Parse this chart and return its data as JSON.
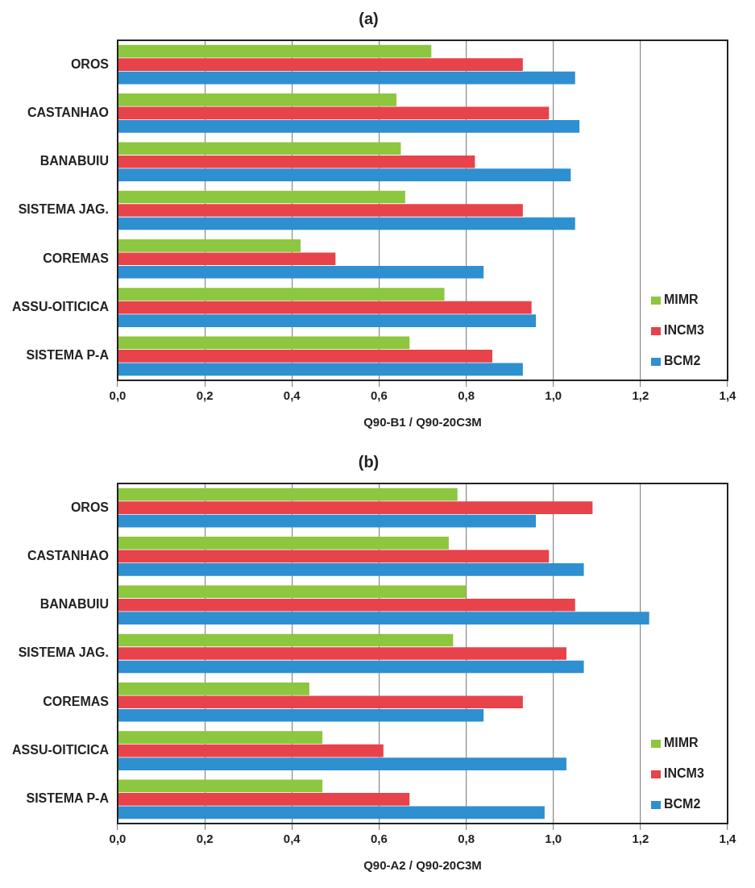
{
  "chart_data": [
    {
      "type": "bar",
      "title": "(a)",
      "orientation": "horizontal",
      "xlabel": "Q90-B1 / Q90-20C3M",
      "categories": [
        "OROS",
        "CASTANHAO",
        "BANABUIU",
        "SISTEMA JAG.",
        "COREMAS",
        "ASSU-OITICICA",
        "SISTEMA P-A"
      ],
      "series": [
        {
          "name": "MIMR",
          "color": "#8dc63f",
          "values": [
            0.72,
            0.64,
            0.65,
            0.66,
            0.42,
            0.75,
            0.67
          ]
        },
        {
          "name": "INCM3",
          "color": "#e8424a",
          "values": [
            0.93,
            0.99,
            0.82,
            0.93,
            0.5,
            0.95,
            0.86
          ]
        },
        {
          "name": "BCM2",
          "color": "#2e8fd1",
          "values": [
            1.05,
            1.06,
            1.04,
            1.05,
            0.84,
            0.96,
            0.93
          ]
        }
      ],
      "xlim": [
        0,
        1.4
      ],
      "xticks": [
        {
          "value": 0,
          "label": "0,0"
        },
        {
          "value": 0.2,
          "label": "0,2"
        },
        {
          "value": 0.4,
          "label": "0,4"
        },
        {
          "value": 0.6,
          "label": "0,6"
        },
        {
          "value": 0.8,
          "label": "0,8"
        },
        {
          "value": 1.0,
          "label": "1,0"
        },
        {
          "value": 1.2,
          "label": "1,2"
        },
        {
          "value": 1.4,
          "label": "1,4"
        }
      ],
      "grid": "x",
      "legend": "bottom right"
    },
    {
      "type": "bar",
      "title": "(b)",
      "orientation": "horizontal",
      "xlabel": "Q90-A2 / Q90-20C3M",
      "categories": [
        "OROS",
        "CASTANHAO",
        "BANABUIU",
        "SISTEMA JAG.",
        "COREMAS",
        "ASSU-OITICICA",
        "SISTEMA P-A"
      ],
      "series": [
        {
          "name": "MIMR",
          "color": "#8dc63f",
          "values": [
            0.78,
            0.76,
            0.8,
            0.77,
            0.44,
            0.47,
            0.47
          ]
        },
        {
          "name": "INCM3",
          "color": "#e8424a",
          "values": [
            1.09,
            0.99,
            1.05,
            1.03,
            0.93,
            0.61,
            0.67
          ]
        },
        {
          "name": "BCM2",
          "color": "#2e8fd1",
          "values": [
            0.96,
            1.07,
            1.22,
            1.07,
            0.84,
            1.03,
            0.98
          ]
        }
      ],
      "xlim": [
        0,
        1.4
      ],
      "xticks": [
        {
          "value": 0,
          "label": "0,0"
        },
        {
          "value": 0.2,
          "label": "0,2"
        },
        {
          "value": 0.4,
          "label": "0,4"
        },
        {
          "value": 0.6,
          "label": "0,6"
        },
        {
          "value": 0.8,
          "label": "0,8"
        },
        {
          "value": 1.0,
          "label": "1,0"
        },
        {
          "value": 1.2,
          "label": "1,2"
        },
        {
          "value": 1.4,
          "label": "1,4"
        }
      ],
      "grid": "x",
      "legend": "bottom right"
    }
  ]
}
